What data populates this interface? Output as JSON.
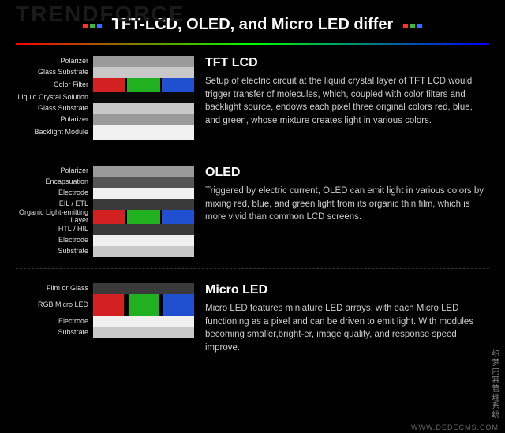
{
  "logo_bg": "TRENDFORCE",
  "title": "TFT-LCD, OLED, and Micro LED differ",
  "header_dots": [
    "#ff3030",
    "#30c030",
    "#3070ff"
  ],
  "colors": {
    "red": "#d32020",
    "green": "#20b020",
    "blue": "#2050d0",
    "grey_light": "#c8c8c8",
    "grey_mid": "#9a9a9a",
    "grey_dark": "#555555",
    "grey_darker": "#3a3a3a",
    "white": "#f0f0f0",
    "black_panel": "#0a0a0a"
  },
  "sections": [
    {
      "title": "TFT LCD",
      "text": "Setup of electric circuit at the liquid crystal layer of TFT LCD would trigger transfer of molecules, which, coupled with color filters and backlight source, endows each pixel three original colors red, blue, and green, whose mixture creates light in various colors.",
      "layers": [
        {
          "label": "Polarizer",
          "h": 10,
          "bars": [
            {
              "c": "grey_mid"
            }
          ]
        },
        {
          "label": "Glass Substrate",
          "h": 12,
          "bars": [
            {
              "c": "grey_light"
            }
          ]
        },
        {
          "label": "Color Filter",
          "h": 18,
          "bars": [
            {
              "c": "red"
            },
            {
              "c": "green"
            },
            {
              "c": "blue"
            }
          ]
        },
        {
          "label": "Liquid Crystal Solution",
          "h": 14,
          "pattern": "dots",
          "bars": [
            {
              "c": "black_panel"
            }
          ]
        },
        {
          "label": "Glass Substrate",
          "h": 12,
          "bars": [
            {
              "c": "grey_light"
            }
          ]
        },
        {
          "label": "Polarizer",
          "h": 10,
          "bars": [
            {
              "c": "grey_mid"
            }
          ]
        },
        {
          "label": "Backlight Module",
          "h": 18,
          "bars": [
            {
              "c": "white"
            }
          ]
        }
      ]
    },
    {
      "title": "OLED",
      "text": "Triggered by electric current, OLED can emit light in various colors by mixing red, blue, and green light from its organic thin film, which is more vivid than common LCD screens.",
      "layers": [
        {
          "label": "Polarizer",
          "h": 10,
          "bars": [
            {
              "c": "grey_mid"
            }
          ]
        },
        {
          "label": "Encapsuation",
          "h": 10,
          "bars": [
            {
              "c": "grey_dark"
            }
          ]
        },
        {
          "label": "Electrode",
          "h": 6,
          "bars": [
            {
              "c": "white"
            }
          ]
        },
        {
          "label": "EIL / ETL",
          "h": 6,
          "bars": [
            {
              "c": "grey_darker"
            }
          ]
        },
        {
          "label": "Organic Light-emitting Layer",
          "h": 18,
          "bars": [
            {
              "c": "red"
            },
            {
              "c": "green"
            },
            {
              "c": "blue"
            }
          ]
        },
        {
          "label": "HTL / HIL",
          "h": 6,
          "bars": [
            {
              "c": "grey_darker"
            }
          ]
        },
        {
          "label": "Electrode",
          "h": 6,
          "bars": [
            {
              "c": "white"
            }
          ]
        },
        {
          "label": "Substrate",
          "h": 14,
          "bars": [
            {
              "c": "grey_light"
            }
          ]
        }
      ]
    },
    {
      "title": "Micro LED",
      "text": "Micro LED features miniature LED arrays, with each Micro LED functioning as a pixel and can be driven to emit light. With modules becoming smaller,bright-er, image quality, and response speed improve.",
      "layers": [
        {
          "label": "Film or Glass",
          "h": 12,
          "bars": [
            {
              "c": "grey_darker"
            }
          ]
        },
        {
          "label": "RGB Micro LED",
          "h": 28,
          "bars": [
            {
              "c": "red"
            },
            {
              "c": "green"
            },
            {
              "c": "blue"
            }
          ],
          "gap": 6
        },
        {
          "label": "Electrode",
          "h": 6,
          "bars": [
            {
              "c": "white"
            }
          ]
        },
        {
          "label": "Substrate",
          "h": 14,
          "bars": [
            {
              "c": "grey_light"
            }
          ]
        }
      ]
    }
  ],
  "watermark_side": "织梦内容管理系统",
  "watermark_bottom": "WWW.DEDECMS.COM"
}
